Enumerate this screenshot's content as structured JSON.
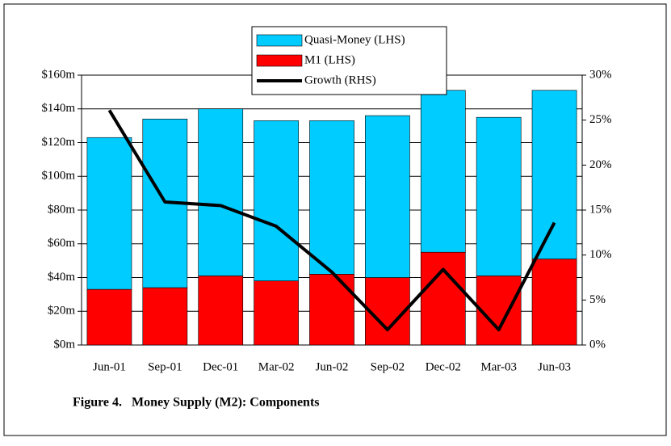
{
  "chart_data": {
    "type": "bar-line",
    "title": "Figure 4.   Money Supply (M2): Components",
    "categories": [
      "Jun-01",
      "Sep-01",
      "Dec-01",
      "Mar-02",
      "Jun-02",
      "Sep-02",
      "Dec-02",
      "Mar-03",
      "Jun-03"
    ],
    "series": [
      {
        "name": "Quasi-Money (LHS)",
        "type": "bar",
        "color": "#00ccff",
        "values": [
          90,
          100,
          99,
          95,
          91,
          96,
          96,
          94,
          100
        ]
      },
      {
        "name": "M1 (LHS)",
        "type": "bar",
        "color": "#ff0000",
        "values": [
          33,
          34,
          41,
          38,
          42,
          40,
          55,
          41,
          51
        ]
      },
      {
        "name": "Growth (RHS)",
        "type": "line",
        "axis": "y2",
        "color": "#000000",
        "values": [
          26.1,
          15.9,
          15.5,
          13.2,
          8.1,
          1.7,
          8.4,
          1.7,
          13.6
        ]
      }
    ],
    "ylim": [
      0,
      160
    ],
    "yticks": [
      {
        "value": 0,
        "label": "$0m"
      },
      {
        "value": 20,
        "label": "$20m"
      },
      {
        "value": 40,
        "label": "$40m"
      },
      {
        "value": 60,
        "label": "$60m"
      },
      {
        "value": 80,
        "label": "$80m"
      },
      {
        "value": 100,
        "label": "$100m"
      },
      {
        "value": 120,
        "label": "$120m"
      },
      {
        "value": 140,
        "label": "$140m"
      },
      {
        "value": 160,
        "label": "$160m"
      }
    ],
    "y2lim": [
      0,
      30
    ],
    "y2ticks": [
      {
        "value": 0,
        "label": "0%"
      },
      {
        "value": 5,
        "label": "5%"
      },
      {
        "value": 10,
        "label": "10%"
      },
      {
        "value": 15,
        "label": "15%"
      },
      {
        "value": 20,
        "label": "20%"
      },
      {
        "value": 25,
        "label": "25%"
      },
      {
        "value": 30,
        "label": "30%"
      }
    ],
    "grid": true
  }
}
